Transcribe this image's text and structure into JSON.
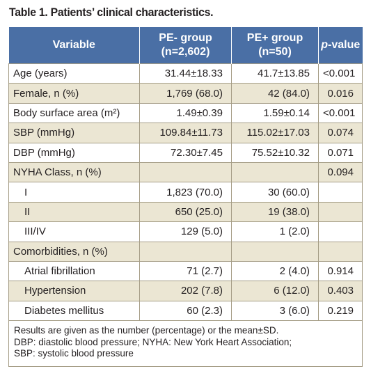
{
  "title": "Table 1. Patients’ clinical characteristics.",
  "header": {
    "variable": "Variable",
    "pe_minus_line1": "PE- group",
    "pe_minus_line2": "(n=2,602)",
    "pe_plus_line1": "PE+ group",
    "pe_plus_line2": "(n=50)",
    "p_italic": "p",
    "p_rest": "-value"
  },
  "colors": {
    "header_bg": "#4a6fa5",
    "stripe_bg": "#ebe6d3",
    "border": "#a59d86"
  },
  "rows": [
    {
      "variable": "Age (years)",
      "indent": false,
      "pe_minus": "31.44±18.33",
      "pe_plus": "41.7±13.85",
      "p": "<0.001"
    },
    {
      "variable": "Female, n (%)",
      "indent": false,
      "pe_minus": "1,769 (68.0)",
      "pe_plus": "42 (84.0)",
      "p": "0.016"
    },
    {
      "variable": "Body surface area (m²)",
      "indent": false,
      "pe_minus": "1.49±0.39",
      "pe_plus": "1.59±0.14",
      "p": "<0.001"
    },
    {
      "variable": "SBP (mmHg)",
      "indent": false,
      "pe_minus": "109.84±11.73",
      "pe_plus": "115.02±17.03",
      "p": "0.074"
    },
    {
      "variable": "DBP (mmHg)",
      "indent": false,
      "pe_minus": "72.30±7.45",
      "pe_plus": "75.52±10.32",
      "p": "0.071"
    },
    {
      "variable": "NYHA Class, n (%)",
      "indent": false,
      "pe_minus": "",
      "pe_plus": "",
      "p": "0.094"
    },
    {
      "variable": "I",
      "indent": true,
      "pe_minus": "1,823 (70.0)",
      "pe_plus": "30 (60.0)",
      "p": ""
    },
    {
      "variable": "II",
      "indent": true,
      "pe_minus": "650 (25.0)",
      "pe_plus": "19 (38.0)",
      "p": ""
    },
    {
      "variable": "III/IV",
      "indent": true,
      "pe_minus": "129 (5.0)",
      "pe_plus": "1 (2.0)",
      "p": ""
    },
    {
      "variable": "Comorbidities, n (%)",
      "indent": false,
      "pe_minus": "",
      "pe_plus": "",
      "p": ""
    },
    {
      "variable": "Atrial fibrillation",
      "indent": true,
      "pe_minus": "71 (2.7)",
      "pe_plus": "2 (4.0)",
      "p": "0.914"
    },
    {
      "variable": "Hypertension",
      "indent": true,
      "pe_minus": "202 (7.8)",
      "pe_plus": "6 (12.0)",
      "p": "0.403"
    },
    {
      "variable": "Diabetes mellitus",
      "indent": true,
      "pe_minus": "60 (2.3)",
      "pe_plus": "3 (6.0)",
      "p": "0.219"
    }
  ],
  "footnote": {
    "line1": "Results are given as the number (percentage) or the mean±SD.",
    "line2": "DBP: diastolic blood pressure; NYHA: New York Heart Association;",
    "line3": "SBP: systolic blood pressure"
  }
}
